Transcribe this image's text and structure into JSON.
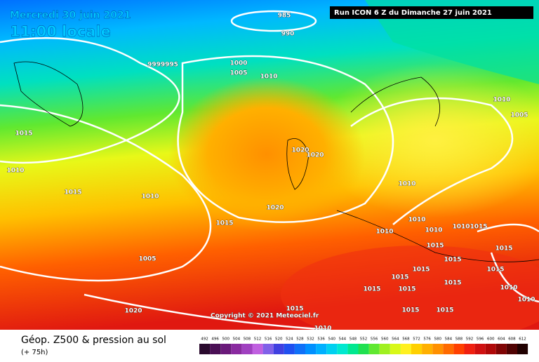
{
  "header": {
    "date": "Mercredi 30 juin 2021",
    "time": "11:00 locale",
    "run": "Run ICON 6 Z du Dimanche 27 juin 2021"
  },
  "copyright": "Copyright © 2021 Meteociel.fr",
  "footer": {
    "title": "Géop. Z500 & pression au sol",
    "lead": "(+ 75h)"
  },
  "legend": [
    {
      "label": "492",
      "color": "#2a0a2e"
    },
    {
      "label": "496",
      "color": "#4a0f55"
    },
    {
      "label": "500",
      "color": "#6a1a7a"
    },
    {
      "label": "504",
      "color": "#8a2aa0"
    },
    {
      "label": "508",
      "color": "#a040c0"
    },
    {
      "label": "512",
      "color": "#c060e0"
    },
    {
      "label": "516",
      "color": "#8060e8"
    },
    {
      "label": "520",
      "color": "#4040e0"
    },
    {
      "label": "524",
      "color": "#2050f0"
    },
    {
      "label": "528",
      "color": "#1070f8"
    },
    {
      "label": "532",
      "color": "#0090ff"
    },
    {
      "label": "536",
      "color": "#00b0ff"
    },
    {
      "label": "540",
      "color": "#00d0f0"
    },
    {
      "label": "544",
      "color": "#00e8d0"
    },
    {
      "label": "548",
      "color": "#00e890"
    },
    {
      "label": "552",
      "color": "#20e050"
    },
    {
      "label": "556",
      "color": "#60e830"
    },
    {
      "label": "560",
      "color": "#a0f020"
    },
    {
      "label": "564",
      "color": "#d8f818"
    },
    {
      "label": "568",
      "color": "#fff020"
    },
    {
      "label": "572",
      "color": "#ffd000"
    },
    {
      "label": "576",
      "color": "#ffb000"
    },
    {
      "label": "580",
      "color": "#ff9000"
    },
    {
      "label": "584",
      "color": "#ff6a00"
    },
    {
      "label": "588",
      "color": "#ff4000"
    },
    {
      "label": "592",
      "color": "#f02010"
    },
    {
      "label": "596",
      "color": "#d01010"
    },
    {
      "label": "600",
      "color": "#b00808"
    },
    {
      "label": "604",
      "color": "#800404"
    },
    {
      "label": "608",
      "color": "#500202"
    },
    {
      "label": "612",
      "color": "#200000"
    }
  ],
  "isobar_labels": [
    "985",
    "990",
    "1000",
    "1005",
    "1010",
    "9999995",
    "1010",
    "1005",
    "1015",
    "1010",
    "1015",
    "1010",
    "1020",
    "1020",
    "1020",
    "1015",
    "1010",
    "1010",
    "1010",
    "1010",
    "1010",
    "1015",
    "1015",
    "1005",
    "1015",
    "1015",
    "1015",
    "1015",
    "1015",
    "1015",
    "1010",
    "1010",
    "1015",
    "1015",
    "1015",
    "1010",
    "1020",
    "1015",
    "1015"
  ]
}
